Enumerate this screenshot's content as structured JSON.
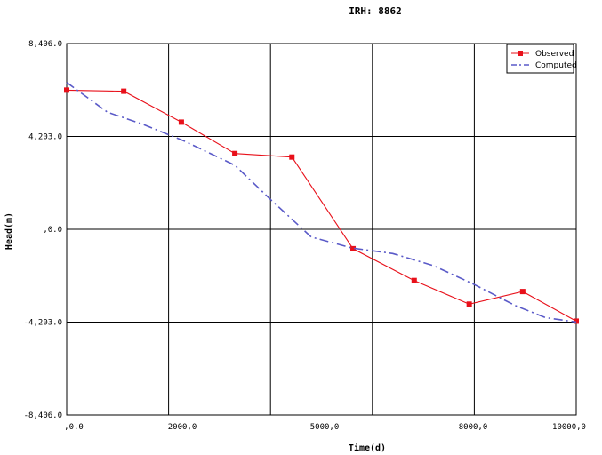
{
  "chart_data": {
    "type": "line",
    "title": "IRH: 8862",
    "xlabel": "Time(d)",
    "ylabel": "Head(m)",
    "xlim": [
      0,
      10000
    ],
    "ylim": [
      -8406,
      8406
    ],
    "grid": true,
    "legend_position": "top-right",
    "x_ticks": [
      ",0.0",
      "2000,0",
      "5000,0",
      "8000,0",
      "10000,0"
    ],
    "y_ticks": [
      "8,406.0",
      "4,203.0",
      ",0.0",
      "-4,203.0",
      "-8,406.0"
    ],
    "series": [
      {
        "name": "Observed",
        "color": "#e8101a",
        "style": "solid",
        "marker": "square",
        "x": [
          0,
          1120,
          2250,
          3300,
          4420,
          5620,
          6820,
          7900,
          8950,
          10000
        ],
        "y": [
          6300,
          6250,
          4850,
          3430,
          3270,
          -880,
          -2320,
          -3390,
          -2820,
          -4160
        ]
      },
      {
        "name": "Computed",
        "color": "#5a5ac8",
        "style": "dashdot",
        "marker": "none",
        "x": [
          0,
          800,
          1500,
          2300,
          3300,
          4000,
          4800,
          5600,
          6400,
          7200,
          8000,
          8800,
          9400,
          10000
        ],
        "y": [
          6650,
          5300,
          4750,
          4000,
          2900,
          1350,
          -350,
          -850,
          -1100,
          -1650,
          -2500,
          -3450,
          -4000,
          -4200
        ]
      }
    ]
  }
}
